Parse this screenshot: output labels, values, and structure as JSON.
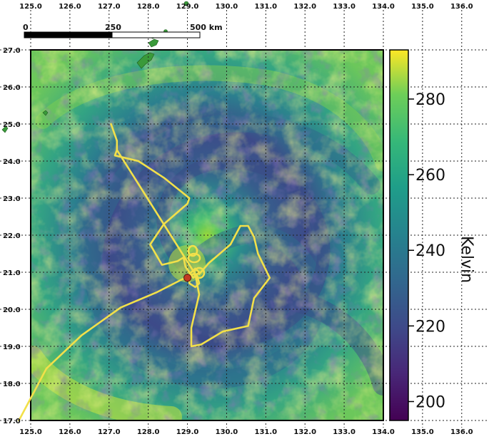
{
  "map": {
    "lon_range": [
      125.0,
      134.0
    ],
    "lat_range": [
      17.0,
      27.0
    ],
    "lon_ticks_bottom": [
      "125.0",
      "126.0",
      "127.0",
      "128.0",
      "129.0",
      "130.0",
      "131.0",
      "132.0",
      "133.0",
      "134.0",
      "135.0",
      "136.0"
    ],
    "lon_ticks_top": [
      "125.0",
      "126.0",
      "127.0",
      "128.0",
      "129.0",
      "130.0",
      "131.0",
      "132.0",
      "133.0",
      "134.0",
      "135.0",
      "136.0"
    ],
    "lat_ticks": [
      "17.0",
      "18.0",
      "19.0",
      "20.0",
      "21.0",
      "22.0",
      "23.0",
      "24.0",
      "25.0",
      "26.0",
      "27.0"
    ],
    "grid": "dotted",
    "storm_center": {
      "lon": 129.0,
      "lat": 20.85
    },
    "flight_track": [
      [
        124.7,
        17.0
      ],
      [
        125.4,
        18.4
      ],
      [
        126.3,
        19.3
      ],
      [
        127.3,
        20.05
      ],
      [
        128.2,
        20.45
      ],
      [
        128.85,
        20.8
      ],
      [
        129.15,
        20.95
      ],
      [
        129.25,
        20.9
      ],
      [
        129.3,
        20.7
      ],
      [
        129.2,
        20.6
      ],
      [
        129.05,
        20.7
      ],
      [
        129.05,
        20.95
      ],
      [
        129.2,
        21.1
      ],
      [
        129.3,
        21.0
      ],
      [
        129.15,
        20.85
      ],
      [
        128.95,
        21.15
      ],
      [
        128.9,
        21.4
      ],
      [
        128.75,
        21.3
      ],
      [
        128.35,
        21.2
      ],
      [
        128.05,
        21.75
      ],
      [
        128.4,
        22.3
      ],
      [
        129.0,
        22.85
      ],
      [
        129.05,
        23.0
      ],
      [
        128.4,
        23.55
      ],
      [
        127.75,
        24.0
      ],
      [
        127.15,
        24.15
      ],
      [
        127.2,
        24.3
      ],
      [
        127.2,
        24.55
      ],
      [
        127.05,
        25.0
      ],
      [
        127.05,
        25.0
      ],
      [
        127.2,
        24.55
      ],
      [
        127.2,
        24.3
      ],
      [
        129.2,
        20.95
      ],
      [
        129.3,
        20.4
      ],
      [
        129.1,
        19.5
      ],
      [
        129.1,
        19.0
      ],
      [
        129.35,
        19.05
      ],
      [
        129.9,
        19.4
      ],
      [
        130.55,
        19.55
      ],
      [
        130.7,
        20.3
      ],
      [
        131.1,
        20.85
      ],
      [
        130.8,
        21.5
      ],
      [
        130.7,
        21.95
      ],
      [
        130.55,
        22.25
      ],
      [
        130.35,
        22.25
      ],
      [
        130.1,
        21.75
      ],
      [
        129.55,
        21.25
      ],
      [
        129.3,
        20.95
      ]
    ],
    "flight_track_color": "#f2e04a",
    "storm_center_color": "#c23b22"
  },
  "scalebar": {
    "labels": [
      "0",
      "250",
      "500 km"
    ]
  },
  "colorbar": {
    "label": "Kelvin",
    "ticks": [
      "200",
      "220",
      "240",
      "260",
      "280"
    ],
    "tick_values": [
      200,
      220,
      240,
      260,
      280
    ],
    "range": [
      195,
      293
    ],
    "colormap": "viridis"
  }
}
